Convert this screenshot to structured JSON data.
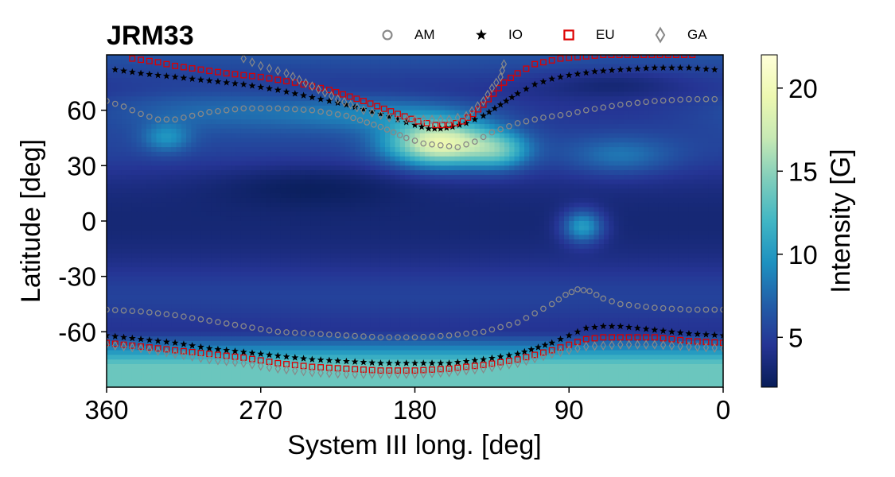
{
  "chart_data": {
    "type": "heatmap",
    "title": "JRM33",
    "xlabel": "System III long. [deg]",
    "ylabel": "Latitude [deg]",
    "xlim": [
      360,
      0
    ],
    "ylim": [
      -90,
      90
    ],
    "xticks": [
      {
        "value": 360,
        "label": "360"
      },
      {
        "value": 270,
        "label": "270"
      },
      {
        "value": 180,
        "label": "180"
      },
      {
        "value": 90,
        "label": "90"
      },
      {
        "value": 0,
        "label": "0"
      }
    ],
    "yticks": [
      {
        "value": 60,
        "label": "60"
      },
      {
        "value": 30,
        "label": "30"
      },
      {
        "value": 0,
        "label": "0"
      },
      {
        "value": -30,
        "label": "-30"
      },
      {
        "value": -60,
        "label": "-60"
      }
    ],
    "colorbar": {
      "label": "Intensity [G]",
      "range": [
        2,
        22
      ],
      "ticks": [
        {
          "value": 5,
          "label": "5"
        },
        {
          "value": 10,
          "label": "10"
        },
        {
          "value": 15,
          "label": "15"
        },
        {
          "value": 20,
          "label": "20"
        }
      ],
      "colormap": [
        "#081d58",
        "#253494",
        "#225ea8",
        "#1d91c0",
        "#41b6c4",
        "#7fcdbb",
        "#c7e9b4",
        "#edf8b1",
        "#ffffd9"
      ]
    },
    "legend": {
      "position": "top",
      "entries": [
        {
          "key": "AM",
          "label": "AM",
          "marker": "circle",
          "color": "#888888"
        },
        {
          "key": "IO",
          "label": "IO",
          "marker": "star",
          "color": "#000000"
        },
        {
          "key": "EU",
          "label": "EU",
          "marker": "square",
          "color": "#dd0000"
        },
        {
          "key": "GA",
          "label": "GA",
          "marker": "diamond",
          "color": "#888888"
        }
      ]
    },
    "intensity_blobs": [
      {
        "lon": 165,
        "lat": 42,
        "sigma_lon": 30,
        "sigma_lat": 12,
        "value": 14
      },
      {
        "lon": 130,
        "lat": 38,
        "sigma_lon": 18,
        "sigma_lat": 10,
        "value": 6
      },
      {
        "lon": 200,
        "lat": 58,
        "sigma_lon": 60,
        "sigma_lat": 10,
        "value": 4
      },
      {
        "lon": 300,
        "lat": 60,
        "sigma_lon": 70,
        "sigma_lat": 12,
        "value": 3
      },
      {
        "lon": 325,
        "lat": 45,
        "sigma_lon": 14,
        "sigma_lat": 8,
        "value": 4
      },
      {
        "lon": 82,
        "lat": -3,
        "sigma_lon": 12,
        "sigma_lat": 9,
        "value": 7
      },
      {
        "lon": 60,
        "lat": 35,
        "sigma_lon": 30,
        "sigma_lat": 10,
        "value": 3
      },
      {
        "lon": 65,
        "lat": 75,
        "sigma_lon": 40,
        "sigma_lat": 7,
        "value": -1.5
      },
      {
        "lon": 240,
        "lat": 20,
        "sigma_lon": 60,
        "sigma_lat": 12,
        "value": -1.5
      }
    ],
    "series": [
      {
        "name": "IO-north",
        "marker": "IO",
        "points": [
          [
            355,
            82
          ],
          [
            340,
            80
          ],
          [
            320,
            78
          ],
          [
            300,
            76
          ],
          [
            280,
            74
          ],
          [
            260,
            71
          ],
          [
            240,
            67
          ],
          [
            220,
            63
          ],
          [
            200,
            58
          ],
          [
            190,
            55
          ],
          [
            180,
            52
          ],
          [
            172,
            50
          ],
          [
            165,
            50
          ],
          [
            158,
            51
          ],
          [
            150,
            53
          ],
          [
            140,
            57
          ],
          [
            130,
            63
          ],
          [
            120,
            69
          ],
          [
            110,
            74
          ],
          [
            100,
            77
          ],
          [
            90,
            79
          ],
          [
            75,
            81
          ],
          [
            60,
            82
          ],
          [
            40,
            83
          ],
          [
            20,
            83
          ],
          [
            5,
            82
          ]
        ]
      },
      {
        "name": "EU-north",
        "marker": "EU",
        "points": [
          [
            345,
            88
          ],
          [
            330,
            86
          ],
          [
            320,
            84
          ],
          [
            305,
            82
          ],
          [
            290,
            80
          ],
          [
            270,
            78
          ],
          [
            250,
            75
          ],
          [
            230,
            71
          ],
          [
            210,
            65
          ],
          [
            190,
            58
          ],
          [
            178,
            54
          ],
          [
            168,
            52
          ],
          [
            160,
            52
          ],
          [
            152,
            54
          ],
          [
            146,
            58
          ],
          [
            140,
            63
          ],
          [
            134,
            69
          ],
          [
            128,
            75
          ],
          [
            120,
            80
          ],
          [
            110,
            85
          ],
          [
            95,
            88
          ],
          [
            70,
            90
          ],
          [
            18,
            90
          ]
        ]
      },
      {
        "name": "AM-north",
        "marker": "AM",
        "points": [
          [
            360,
            65
          ],
          [
            350,
            62
          ],
          [
            340,
            58
          ],
          [
            330,
            55
          ],
          [
            320,
            55
          ],
          [
            310,
            57
          ],
          [
            300,
            59
          ],
          [
            290,
            60
          ],
          [
            280,
            61
          ],
          [
            260,
            61
          ],
          [
            240,
            60
          ],
          [
            220,
            57
          ],
          [
            200,
            51
          ],
          [
            185,
            45
          ],
          [
            175,
            42
          ],
          [
            165,
            41
          ],
          [
            155,
            40
          ],
          [
            145,
            43
          ],
          [
            135,
            48
          ],
          [
            120,
            53
          ],
          [
            105,
            56
          ],
          [
            90,
            58
          ],
          [
            80,
            60
          ],
          [
            60,
            63
          ],
          [
            40,
            65
          ],
          [
            20,
            66
          ],
          [
            5,
            66
          ]
        ]
      },
      {
        "name": "GA-north",
        "marker": "GA",
        "points": [
          [
            280,
            88
          ],
          [
            270,
            84
          ],
          [
            255,
            80
          ],
          [
            240,
            73
          ],
          [
            225,
            66
          ],
          [
            210,
            60
          ],
          [
            195,
            56
          ],
          [
            180,
            55
          ],
          [
            170,
            55
          ],
          [
            160,
            55
          ],
          [
            150,
            57
          ],
          [
            140,
            65
          ],
          [
            135,
            72
          ],
          [
            130,
            78
          ],
          [
            128,
            85
          ]
        ]
      },
      {
        "name": "IO-south",
        "marker": "IO",
        "points": [
          [
            360,
            -62
          ],
          [
            340,
            -64
          ],
          [
            320,
            -66
          ],
          [
            300,
            -69
          ],
          [
            280,
            -71
          ],
          [
            260,
            -73
          ],
          [
            240,
            -75
          ],
          [
            220,
            -76
          ],
          [
            200,
            -77
          ],
          [
            180,
            -77
          ],
          [
            160,
            -77
          ],
          [
            140,
            -75
          ],
          [
            120,
            -72
          ],
          [
            100,
            -66
          ],
          [
            90,
            -62
          ],
          [
            80,
            -58
          ],
          [
            70,
            -57
          ],
          [
            60,
            -57
          ],
          [
            50,
            -58
          ],
          [
            40,
            -59
          ],
          [
            20,
            -61
          ],
          [
            0,
            -62
          ]
        ]
      },
      {
        "name": "EU-south",
        "marker": "EU",
        "points": [
          [
            360,
            -66
          ],
          [
            340,
            -68
          ],
          [
            320,
            -70
          ],
          [
            300,
            -72
          ],
          [
            280,
            -74
          ],
          [
            260,
            -77
          ],
          [
            240,
            -79
          ],
          [
            220,
            -80
          ],
          [
            200,
            -81
          ],
          [
            180,
            -81
          ],
          [
            160,
            -80
          ],
          [
            140,
            -78
          ],
          [
            120,
            -75
          ],
          [
            100,
            -70
          ],
          [
            90,
            -67
          ],
          [
            80,
            -64
          ],
          [
            70,
            -63
          ],
          [
            60,
            -63
          ],
          [
            50,
            -63
          ],
          [
            40,
            -63
          ],
          [
            20,
            -65
          ],
          [
            0,
            -66
          ]
        ]
      },
      {
        "name": "AM-south",
        "marker": "AM",
        "points": [
          [
            360,
            -48
          ],
          [
            340,
            -49
          ],
          [
            320,
            -51
          ],
          [
            300,
            -54
          ],
          [
            280,
            -57
          ],
          [
            260,
            -60
          ],
          [
            240,
            -61
          ],
          [
            220,
            -62
          ],
          [
            200,
            -63
          ],
          [
            180,
            -63
          ],
          [
            160,
            -62
          ],
          [
            140,
            -60
          ],
          [
            120,
            -55
          ],
          [
            110,
            -50
          ],
          [
            100,
            -45
          ],
          [
            92,
            -40
          ],
          [
            85,
            -37
          ],
          [
            78,
            -38
          ],
          [
            70,
            -42
          ],
          [
            60,
            -45
          ],
          [
            40,
            -47
          ],
          [
            20,
            -48
          ],
          [
            0,
            -48
          ]
        ]
      },
      {
        "name": "GA-south",
        "marker": "GA",
        "points": [
          [
            360,
            -67
          ],
          [
            340,
            -69
          ],
          [
            320,
            -72
          ],
          [
            300,
            -75
          ],
          [
            280,
            -77
          ],
          [
            260,
            -80
          ],
          [
            240,
            -82
          ],
          [
            220,
            -83
          ],
          [
            200,
            -83
          ],
          [
            180,
            -83
          ],
          [
            160,
            -82
          ],
          [
            140,
            -80
          ],
          [
            120,
            -77
          ],
          [
            100,
            -72
          ],
          [
            80,
            -68
          ],
          [
            60,
            -67
          ],
          [
            40,
            -67
          ],
          [
            20,
            -68
          ],
          [
            0,
            -69
          ]
        ]
      }
    ]
  }
}
